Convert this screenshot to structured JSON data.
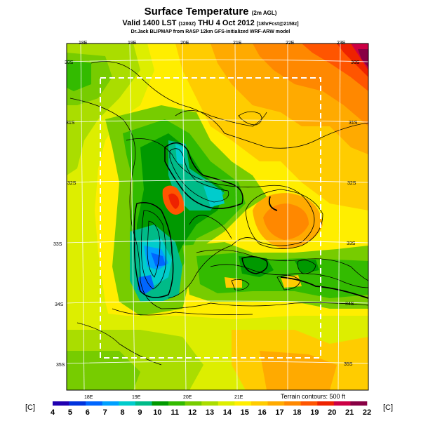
{
  "header": {
    "title": "Surface Temperature",
    "title_suffix": "(2m AGL)",
    "valid_prefix": "Valid 1400 LST",
    "valid_code": "(1200Z)",
    "valid_date": "THU 4 Oct 2012",
    "valid_run": "[18hrFcst@2158z]",
    "credit": "Dr.Jack BLIPMAP from RASP 12km GFS-initialized WRF-ARW model"
  },
  "map": {
    "top_lon_labels": [
      "18E",
      "19E",
      "20E",
      "21E",
      "22E",
      "23E"
    ],
    "bottom_lon_labels": [
      "18E",
      "19E",
      "20E",
      "21E"
    ],
    "left_lat_labels": [
      "30S",
      "31S",
      "32S",
      "33S",
      "34S",
      "35S"
    ],
    "right_lat_labels": [
      "30S",
      "31S",
      "32S",
      "33S",
      "34S",
      "35S"
    ],
    "terrain_note": "Terrain contours: 500 ft"
  },
  "colorbar": {
    "unit_left": "[C]",
    "unit_right": "[C]",
    "ticks": [
      "4",
      "5",
      "6",
      "7",
      "8",
      "9",
      "10",
      "11",
      "12",
      "13",
      "14",
      "15",
      "16",
      "17",
      "18",
      "19",
      "20",
      "21",
      "22"
    ],
    "colors": [
      "#2000b0",
      "#0033dd",
      "#0066ff",
      "#00a0ff",
      "#00cccc",
      "#00bb88",
      "#009900",
      "#33bb00",
      "#77cc00",
      "#aadd00",
      "#ddee00",
      "#ffee00",
      "#ffcc00",
      "#ffaa00",
      "#ff8800",
      "#ff5500",
      "#ee2200",
      "#cc0044",
      "#880044"
    ]
  }
}
